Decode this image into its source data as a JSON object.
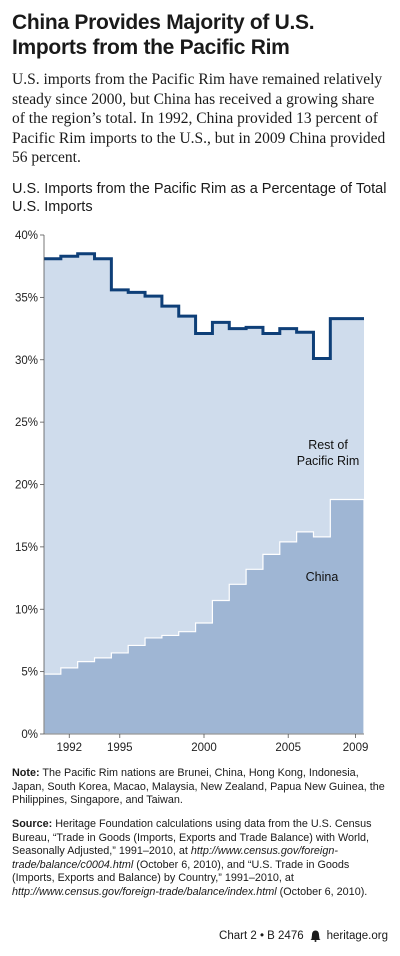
{
  "title": "China Provides Majority of U.S. Imports from the Pacific Rim",
  "intro": "U.S. imports from the Pacific Rim have remained relatively steady since 2000, but China has received a growing share of the region’s total. In 1992, China provided 13 percent of Pacific Rim imports to the U.S., but in 2009 China provided 56 percent.",
  "chart_title": "U.S. Imports from the Pacific Rim as a Percentage of Total U.S. Imports",
  "chart_data": {
    "type": "area",
    "x": [
      1991,
      1992,
      1993,
      1994,
      1995,
      1996,
      1997,
      1998,
      1999,
      2000,
      2001,
      2002,
      2003,
      2004,
      2005,
      2006,
      2007,
      2008,
      2009
    ],
    "series": [
      {
        "name": "Rest of Pacific Rim",
        "values": [
          38.1,
          38.3,
          38.5,
          38.1,
          35.6,
          35.4,
          35.1,
          34.3,
          33.5,
          32.1,
          33.0,
          32.5,
          32.6,
          32.1,
          32.5,
          32.2,
          30.1,
          33.3,
          33.3
        ]
      },
      {
        "name": "China",
        "values": [
          4.8,
          5.3,
          5.8,
          6.1,
          6.5,
          7.1,
          7.7,
          7.9,
          8.2,
          8.9,
          10.7,
          12.0,
          13.2,
          14.4,
          15.4,
          16.2,
          15.8,
          18.8,
          18.8
        ]
      }
    ],
    "y_tick_labels": [
      "0%",
      "5%",
      "10%",
      "15%",
      "20%",
      "25%",
      "30%",
      "35%",
      "40%"
    ],
    "x_tick_labels": [
      "1992",
      "1995",
      "2000",
      "2005",
      "2009"
    ],
    "ylim": [
      0,
      40
    ],
    "labels": {
      "rest_line1": "Rest of",
      "rest_line2": "Pacific Rim",
      "china": "China"
    },
    "colors": {
      "rest_fill": "#cfdcec",
      "china_fill": "#9fb6d4",
      "line": "#0e3f78",
      "china_edge": "#ffffff"
    }
  },
  "note_label": "Note:",
  "note_text": "The Pacific Rim nations are Brunei, China, Hong Kong, Indonesia, Japan, South Korea, Macao, Malaysia, New Zealand, Papua New Guinea, the Philippines, Singapore, and Taiwan.",
  "source_label": "Source:",
  "source_text_1": "Heritage Foundation calculations using data from the U.S. Census Bureau, “Trade in Goods (Imports, Exports and Trade Balance) with World, Seasonally Adjusted,” 1991–2010, at ",
  "source_url_1": "http://www.census.gov/foreign-trade/balance/c0004.html",
  "source_text_2": " (October 6, 2010), and “U.S. Trade in Goods (Imports, Exports and Balance) by Country,” 1991–2010, at ",
  "source_url_2": "http://www.census.gov/foreign-trade/balance/index.html",
  "source_text_3": " (October 6, 2010).",
  "footer_chart": "Chart 2 • B 2476",
  "footer_site": "heritage.org"
}
